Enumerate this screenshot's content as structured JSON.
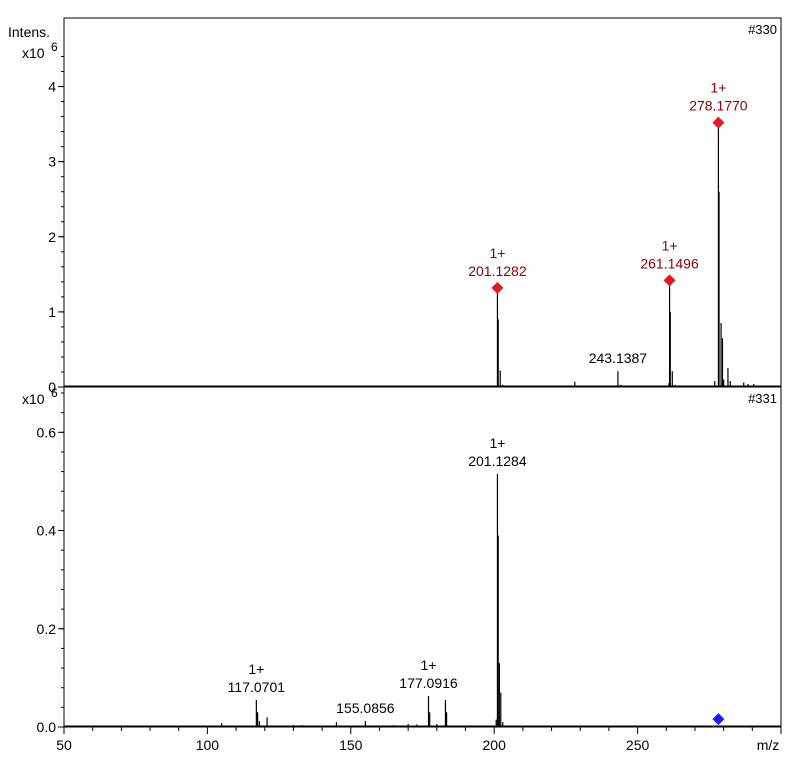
{
  "chart_data": [
    {
      "type": "line",
      "panel_id": "#330",
      "ylabel": "Intens.",
      "y_multiplier": "x10",
      "y_exponent": "6",
      "xlabel": "",
      "xlim": [
        50,
        300
      ],
      "ylim": [
        0,
        4.5
      ],
      "yticks": [
        0,
        1,
        2,
        3,
        4
      ],
      "xticks": [],
      "line_color": "#000000",
      "peaks": [
        {
          "mz": 182.0,
          "intensity": 0.006
        },
        {
          "mz": 200.5,
          "intensity": 0.02
        },
        {
          "mz": 201.1282,
          "intensity": 1.32
        },
        {
          "mz": 201.4,
          "intensity": 0.9
        },
        {
          "mz": 202.1,
          "intensity": 0.22
        },
        {
          "mz": 203.0,
          "intensity": 0.03
        },
        {
          "mz": 228.1,
          "intensity": 0.07
        },
        {
          "mz": 243.1387,
          "intensity": 0.21
        },
        {
          "mz": 244.1,
          "intensity": 0.03
        },
        {
          "mz": 260.9,
          "intensity": 0.05
        },
        {
          "mz": 261.1496,
          "intensity": 1.42
        },
        {
          "mz": 261.4,
          "intensity": 1.0
        },
        {
          "mz": 262.1,
          "intensity": 0.21
        },
        {
          "mz": 263.0,
          "intensity": 0.03
        },
        {
          "mz": 276.9,
          "intensity": 0.08
        },
        {
          "mz": 278.177,
          "intensity": 3.52
        },
        {
          "mz": 278.4,
          "intensity": 2.6
        },
        {
          "mz": 279.1,
          "intensity": 0.85
        },
        {
          "mz": 279.6,
          "intensity": 0.65
        },
        {
          "mz": 280.0,
          "intensity": 0.1
        },
        {
          "mz": 281.5,
          "intensity": 0.25
        },
        {
          "mz": 282.3,
          "intensity": 0.08
        },
        {
          "mz": 287.0,
          "intensity": 0.06
        },
        {
          "mz": 288.5,
          "intensity": 0.04
        },
        {
          "mz": 290.5,
          "intensity": 0.04
        }
      ],
      "annotations": [
        {
          "mz": 201.1282,
          "intensity": 1.32,
          "charge": "1+",
          "text": "201.1282",
          "color": "#8b0000",
          "marker": true,
          "marker_color": "#e41a1c"
        },
        {
          "mz": 261.1496,
          "intensity": 1.42,
          "charge": "1+",
          "text": "261.1496",
          "color": "#8b0000",
          "marker": true,
          "marker_color": "#e41a1c"
        },
        {
          "mz": 278.177,
          "intensity": 3.52,
          "charge": "1+",
          "text": "278.1770",
          "color": "#8b0000",
          "marker": true,
          "marker_color": "#e41a1c"
        },
        {
          "mz": 243.1387,
          "intensity": 0.21,
          "charge": "",
          "text": "243.1387",
          "color": "#000000",
          "marker": false
        }
      ]
    },
    {
      "type": "line",
      "panel_id": "#331",
      "ylabel": "",
      "y_multiplier": "x10",
      "y_exponent": "6",
      "xlabel": "m/z",
      "xlim": [
        50,
        300
      ],
      "ylim": [
        0,
        0.68
      ],
      "yticks": [
        0.0,
        0.2,
        0.4,
        0.6
      ],
      "xticks": [
        50,
        100,
        150,
        200,
        250
      ],
      "line_color": "#000000",
      "peaks": [
        {
          "mz": 105.0,
          "intensity": 0.008
        },
        {
          "mz": 117.0701,
          "intensity": 0.055
        },
        {
          "mz": 117.5,
          "intensity": 0.03
        },
        {
          "mz": 118.1,
          "intensity": 0.012
        },
        {
          "mz": 120.8,
          "intensity": 0.02
        },
        {
          "mz": 130.0,
          "intensity": 0.004
        },
        {
          "mz": 133.0,
          "intensity": 0.004
        },
        {
          "mz": 145.0,
          "intensity": 0.01
        },
        {
          "mz": 155.0856,
          "intensity": 0.012
        },
        {
          "mz": 165.0,
          "intensity": 0.004
        },
        {
          "mz": 170.0,
          "intensity": 0.006
        },
        {
          "mz": 173.0,
          "intensity": 0.005
        },
        {
          "mz": 177.0916,
          "intensity": 0.063
        },
        {
          "mz": 177.5,
          "intensity": 0.03
        },
        {
          "mz": 180.0,
          "intensity": 0.006
        },
        {
          "mz": 183.0,
          "intensity": 0.055
        },
        {
          "mz": 183.4,
          "intensity": 0.03
        },
        {
          "mz": 200.7,
          "intensity": 0.015
        },
        {
          "mz": 201.1284,
          "intensity": 0.515
        },
        {
          "mz": 201.4,
          "intensity": 0.39
        },
        {
          "mz": 201.8,
          "intensity": 0.13
        },
        {
          "mz": 202.3,
          "intensity": 0.07
        },
        {
          "mz": 203.0,
          "intensity": 0.01
        }
      ],
      "annotations": [
        {
          "mz": 201.1284,
          "intensity": 0.515,
          "charge": "1+",
          "text": "201.1284",
          "color": "#000000",
          "marker": false
        },
        {
          "mz": 177.0916,
          "intensity": 0.063,
          "charge": "1+",
          "text": "177.0916",
          "color": "#000000",
          "marker": false
        },
        {
          "mz": 117.0701,
          "intensity": 0.055,
          "charge": "1+",
          "text": "117.0701",
          "color": "#000000",
          "marker": false
        },
        {
          "mz": 155.0856,
          "intensity": 0.012,
          "charge": "",
          "text": "155.0856",
          "color": "#000000",
          "marker": false
        }
      ],
      "precursor_marker": {
        "mz": 278.177,
        "intensity": 0.012,
        "color": "#1a1aff"
      }
    }
  ]
}
